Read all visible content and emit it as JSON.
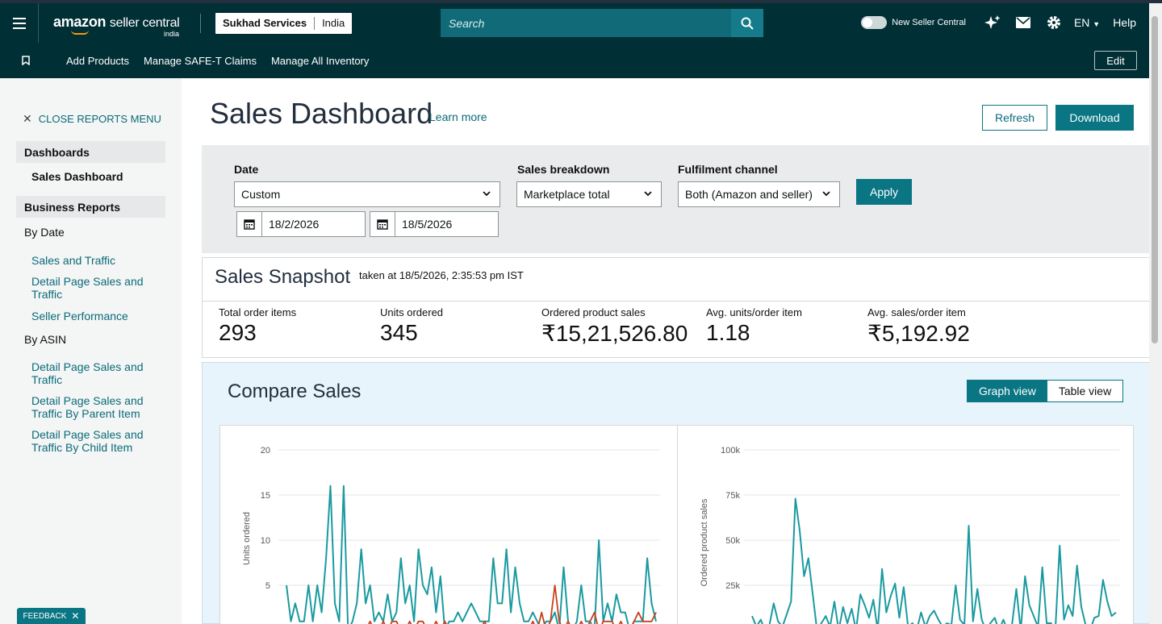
{
  "header": {
    "logo_text": "amazon",
    "logo_suffix": "seller central",
    "logo_region": "india",
    "store_name": "Sukhad Services",
    "marketplace": "India",
    "search_placeholder": "Search",
    "new_seller_central_label": "New Seller Central",
    "language": "EN",
    "help_label": "Help"
  },
  "nav": {
    "links": [
      "Add Products",
      "Manage SAFE-T Claims",
      "Manage All Inventory"
    ],
    "edit_label": "Edit"
  },
  "sidebar": {
    "close_label": "CLOSE REPORTS MENU",
    "dashboards_heading": "Dashboards",
    "sales_dashboard": "Sales Dashboard",
    "business_reports_heading": "Business Reports",
    "by_date": "By Date",
    "by_date_links": [
      "Sales and Traffic",
      "Detail Page Sales and Traffic",
      "Seller Performance"
    ],
    "by_asin": "By ASIN",
    "by_asin_links": [
      "Detail Page Sales and Traffic",
      "Detail Page Sales and Traffic By Parent Item",
      "Detail Page Sales and Traffic By Child Item"
    ],
    "feedback_label": "FEEDBACK"
  },
  "page": {
    "title": "Sales Dashboard",
    "learn_more": "Learn more",
    "refresh_label": "Refresh",
    "download_label": "Download"
  },
  "filters": {
    "date_label": "Date",
    "date_value": "Custom",
    "start_date": "18/2/2026",
    "end_date": "18/5/2026",
    "breakdown_label": "Sales breakdown",
    "breakdown_value": "Marketplace total",
    "channel_label": "Fulfilment channel",
    "channel_value": "Both (Amazon and seller)",
    "apply_label": "Apply"
  },
  "snapshot": {
    "title": "Sales Snapshot",
    "taken_at": "taken at 18/5/2026, 2:35:53 pm IST",
    "metrics": [
      {
        "label": "Total order items",
        "value": "293"
      },
      {
        "label": "Units ordered",
        "value": "345"
      },
      {
        "label": "Ordered product sales",
        "value": "₹15,21,526.80"
      },
      {
        "label": "Avg. units/order item",
        "value": "1.18"
      },
      {
        "label": "Avg. sales/order item",
        "value": "₹5,192.92"
      }
    ]
  },
  "compare": {
    "title": "Compare Sales",
    "graph_view": "Graph view",
    "table_view": "Table view"
  },
  "colors": {
    "teal_series": "#1a9aa0",
    "red_series": "#c8401c",
    "accent": "#0a7583"
  },
  "chart_data": [
    {
      "type": "line",
      "ylabel": "Units ordered",
      "yticks": [
        "20",
        "15",
        "10",
        "5"
      ],
      "ylim": [
        0,
        20
      ],
      "series": [
        {
          "values": [
            5,
            1,
            3,
            1,
            1,
            5,
            1,
            5,
            2,
            8,
            16,
            3,
            1,
            16,
            0,
            1,
            3,
            9,
            3,
            5,
            1,
            2,
            1,
            4,
            1,
            2,
            8,
            3,
            5,
            1,
            9,
            5,
            4,
            7,
            2,
            6,
            0,
            1,
            1,
            2,
            1,
            2,
            3,
            2,
            1,
            1,
            1,
            8,
            3,
            3,
            9,
            2,
            7,
            3,
            1,
            1,
            2,
            1,
            0,
            1,
            1,
            2,
            0,
            7,
            1,
            0,
            1,
            5,
            1,
            1,
            0,
            10,
            1,
            3,
            1,
            4,
            2,
            2,
            0,
            1,
            1,
            1,
            8,
            3,
            1
          ]
        },
        {
          "values": [
            0,
            0,
            0,
            0,
            0,
            0,
            0,
            0,
            0,
            0,
            0,
            0,
            0,
            0,
            0,
            0,
            0,
            0,
            0,
            1,
            0,
            0,
            1,
            0,
            1,
            1,
            0,
            0,
            1,
            0,
            1,
            1,
            0,
            0,
            1,
            0,
            1,
            0,
            0,
            0,
            0,
            0,
            0,
            0,
            0,
            1,
            0,
            0,
            0,
            0,
            0,
            0,
            0,
            0,
            0,
            0,
            1,
            0,
            2,
            0,
            1,
            5,
            1,
            0,
            1,
            0,
            0,
            1,
            0,
            1,
            2,
            0,
            1,
            1,
            1,
            0,
            1,
            0,
            0,
            1,
            2,
            1,
            1,
            1,
            2
          ]
        }
      ]
    },
    {
      "type": "line",
      "ylabel": "Ordered product sales",
      "yticks": [
        "100k",
        "75k",
        "50k",
        "25k"
      ],
      "ylim": [
        0,
        100000
      ],
      "series": [
        {
          "values": [
            8000,
            2000,
            6000,
            0,
            3000,
            15000,
            5000,
            2000,
            9000,
            16000,
            73000,
            55000,
            30000,
            40000,
            20000,
            0,
            4000,
            8000,
            2000,
            16000,
            0,
            13000,
            4000,
            12000,
            0,
            20000,
            14000,
            7000,
            17000,
            0,
            34000,
            10000,
            19000,
            26000,
            7000,
            24000,
            2000,
            4000,
            0,
            10000,
            2000,
            8000,
            11000,
            6000,
            2000,
            4000,
            3000,
            25000,
            6000,
            3000,
            58000,
            5000,
            23000,
            6000,
            0,
            4000,
            7000,
            0,
            6000,
            0,
            3000,
            23000,
            0,
            30000,
            14000,
            8000,
            2000,
            35000,
            4000,
            4000,
            0,
            47000,
            6000,
            14000,
            8000,
            36000,
            13000,
            3000,
            0,
            7000,
            8000,
            28000,
            16000,
            8000,
            10000
          ]
        },
        {
          "values": [
            0,
            0,
            0,
            0,
            0,
            0,
            0,
            0,
            0,
            0,
            0,
            0,
            0,
            0,
            0,
            0,
            0,
            0,
            0,
            0,
            0,
            0,
            1000,
            0,
            1000,
            1000,
            0,
            0,
            0,
            0,
            0,
            0,
            0,
            0,
            0,
            0,
            0,
            0,
            0,
            0,
            0,
            0,
            0,
            0,
            0,
            0,
            0,
            0,
            0,
            0,
            0,
            0,
            0,
            0,
            0,
            0,
            0,
            0,
            0,
            0,
            0,
            0,
            0,
            0,
            0,
            0,
            0,
            0,
            0,
            0,
            0,
            0,
            0,
            0,
            0,
            0,
            0,
            0,
            0,
            0,
            0,
            0,
            0,
            0,
            0
          ]
        }
      ]
    }
  ]
}
